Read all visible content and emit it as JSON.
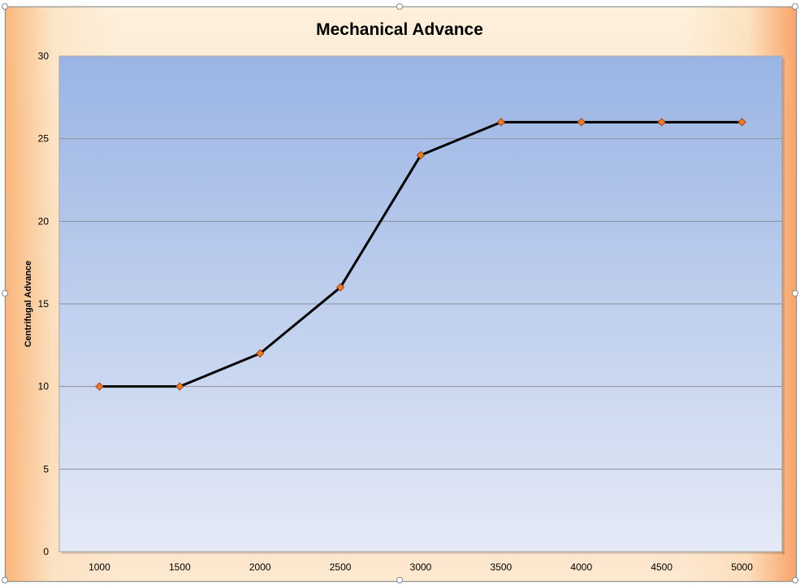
{
  "chart_data": {
    "type": "line",
    "title": "Mechanical Advance",
    "xlabel": "",
    "ylabel": "Centrifugal Advance",
    "categories": [
      "1000",
      "1500",
      "2000",
      "2500",
      "3000",
      "3500",
      "4000",
      "4500",
      "5000"
    ],
    "series": [
      {
        "values": [
          10,
          10,
          12,
          16,
          24,
          26,
          26,
          26,
          26
        ]
      }
    ],
    "ylim": [
      0,
      30
    ],
    "yticks": [
      0,
      5,
      10,
      15,
      20,
      25,
      30
    ],
    "grid": true,
    "legend": "none",
    "colors": {
      "line": "#000000",
      "marker_fill": "#e0842a",
      "marker_stroke": "#b03a1a",
      "plot_top": "#9ab4e4",
      "plot_bottom": "#e4eaf6",
      "gridline": "#8a9099"
    }
  }
}
